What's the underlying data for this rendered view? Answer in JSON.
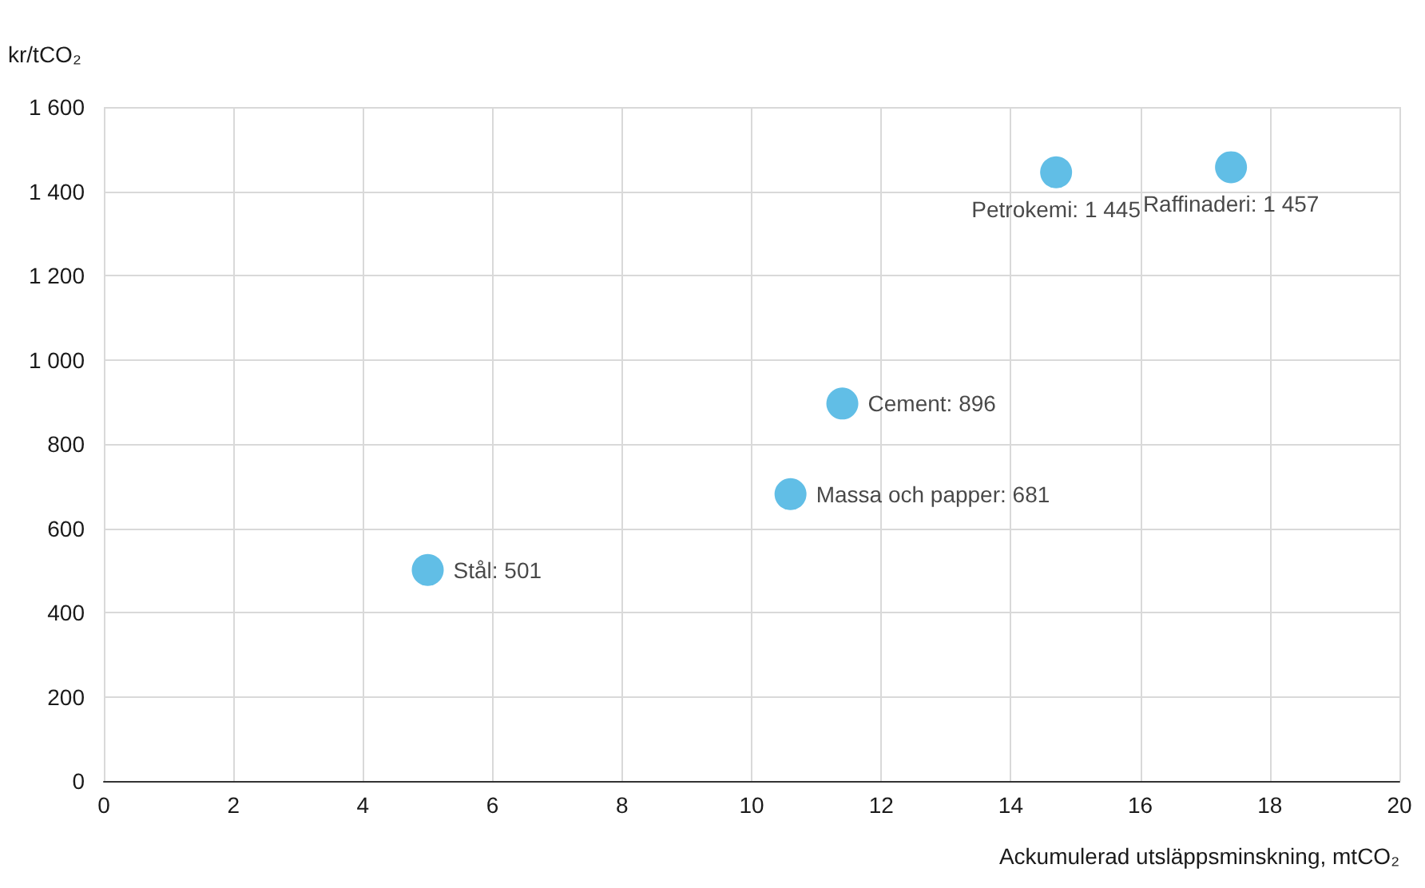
{
  "chart_data": {
    "type": "scatter",
    "ylabel": "kr/tCO₂",
    "xlabel": "Ackumulerad utsläppsminskning, mtCO₂",
    "x": [
      5.0,
      10.6,
      11.4,
      14.7,
      17.4
    ],
    "series": [
      {
        "color": "#3aaee0",
        "values": [
          501,
          681,
          896,
          1445,
          1457
        ]
      }
    ],
    "annotations": [
      {
        "text": "Stål: 501",
        "x": 5.0,
        "y": 501
      },
      {
        "text": "Massa och papper: 681",
        "x": 10.6,
        "y": 681
      },
      {
        "text": "Cement: 896",
        "x": 11.4,
        "y": 896
      },
      {
        "text": "Petrokemi: 1 445",
        "x": 14.7,
        "y": 1445
      },
      {
        "text": "Raffinaderi: 1 457",
        "x": 17.4,
        "y": 1457
      }
    ],
    "xlim": [
      0,
      20
    ],
    "xticks": [
      0,
      2,
      4,
      6,
      8,
      10,
      12,
      14,
      16,
      18,
      20
    ],
    "ylim": [
      0,
      1600
    ],
    "yticks": [
      0,
      200,
      400,
      600,
      800,
      {
        "value": 1000,
        "label": "1 000"
      },
      {
        "value": 1200,
        "label": "1 200"
      },
      {
        "value": 1400,
        "label": "1 400"
      },
      {
        "value": 1600,
        "label": "1 600"
      }
    ],
    "grid": true,
    "marker": "circle"
  }
}
